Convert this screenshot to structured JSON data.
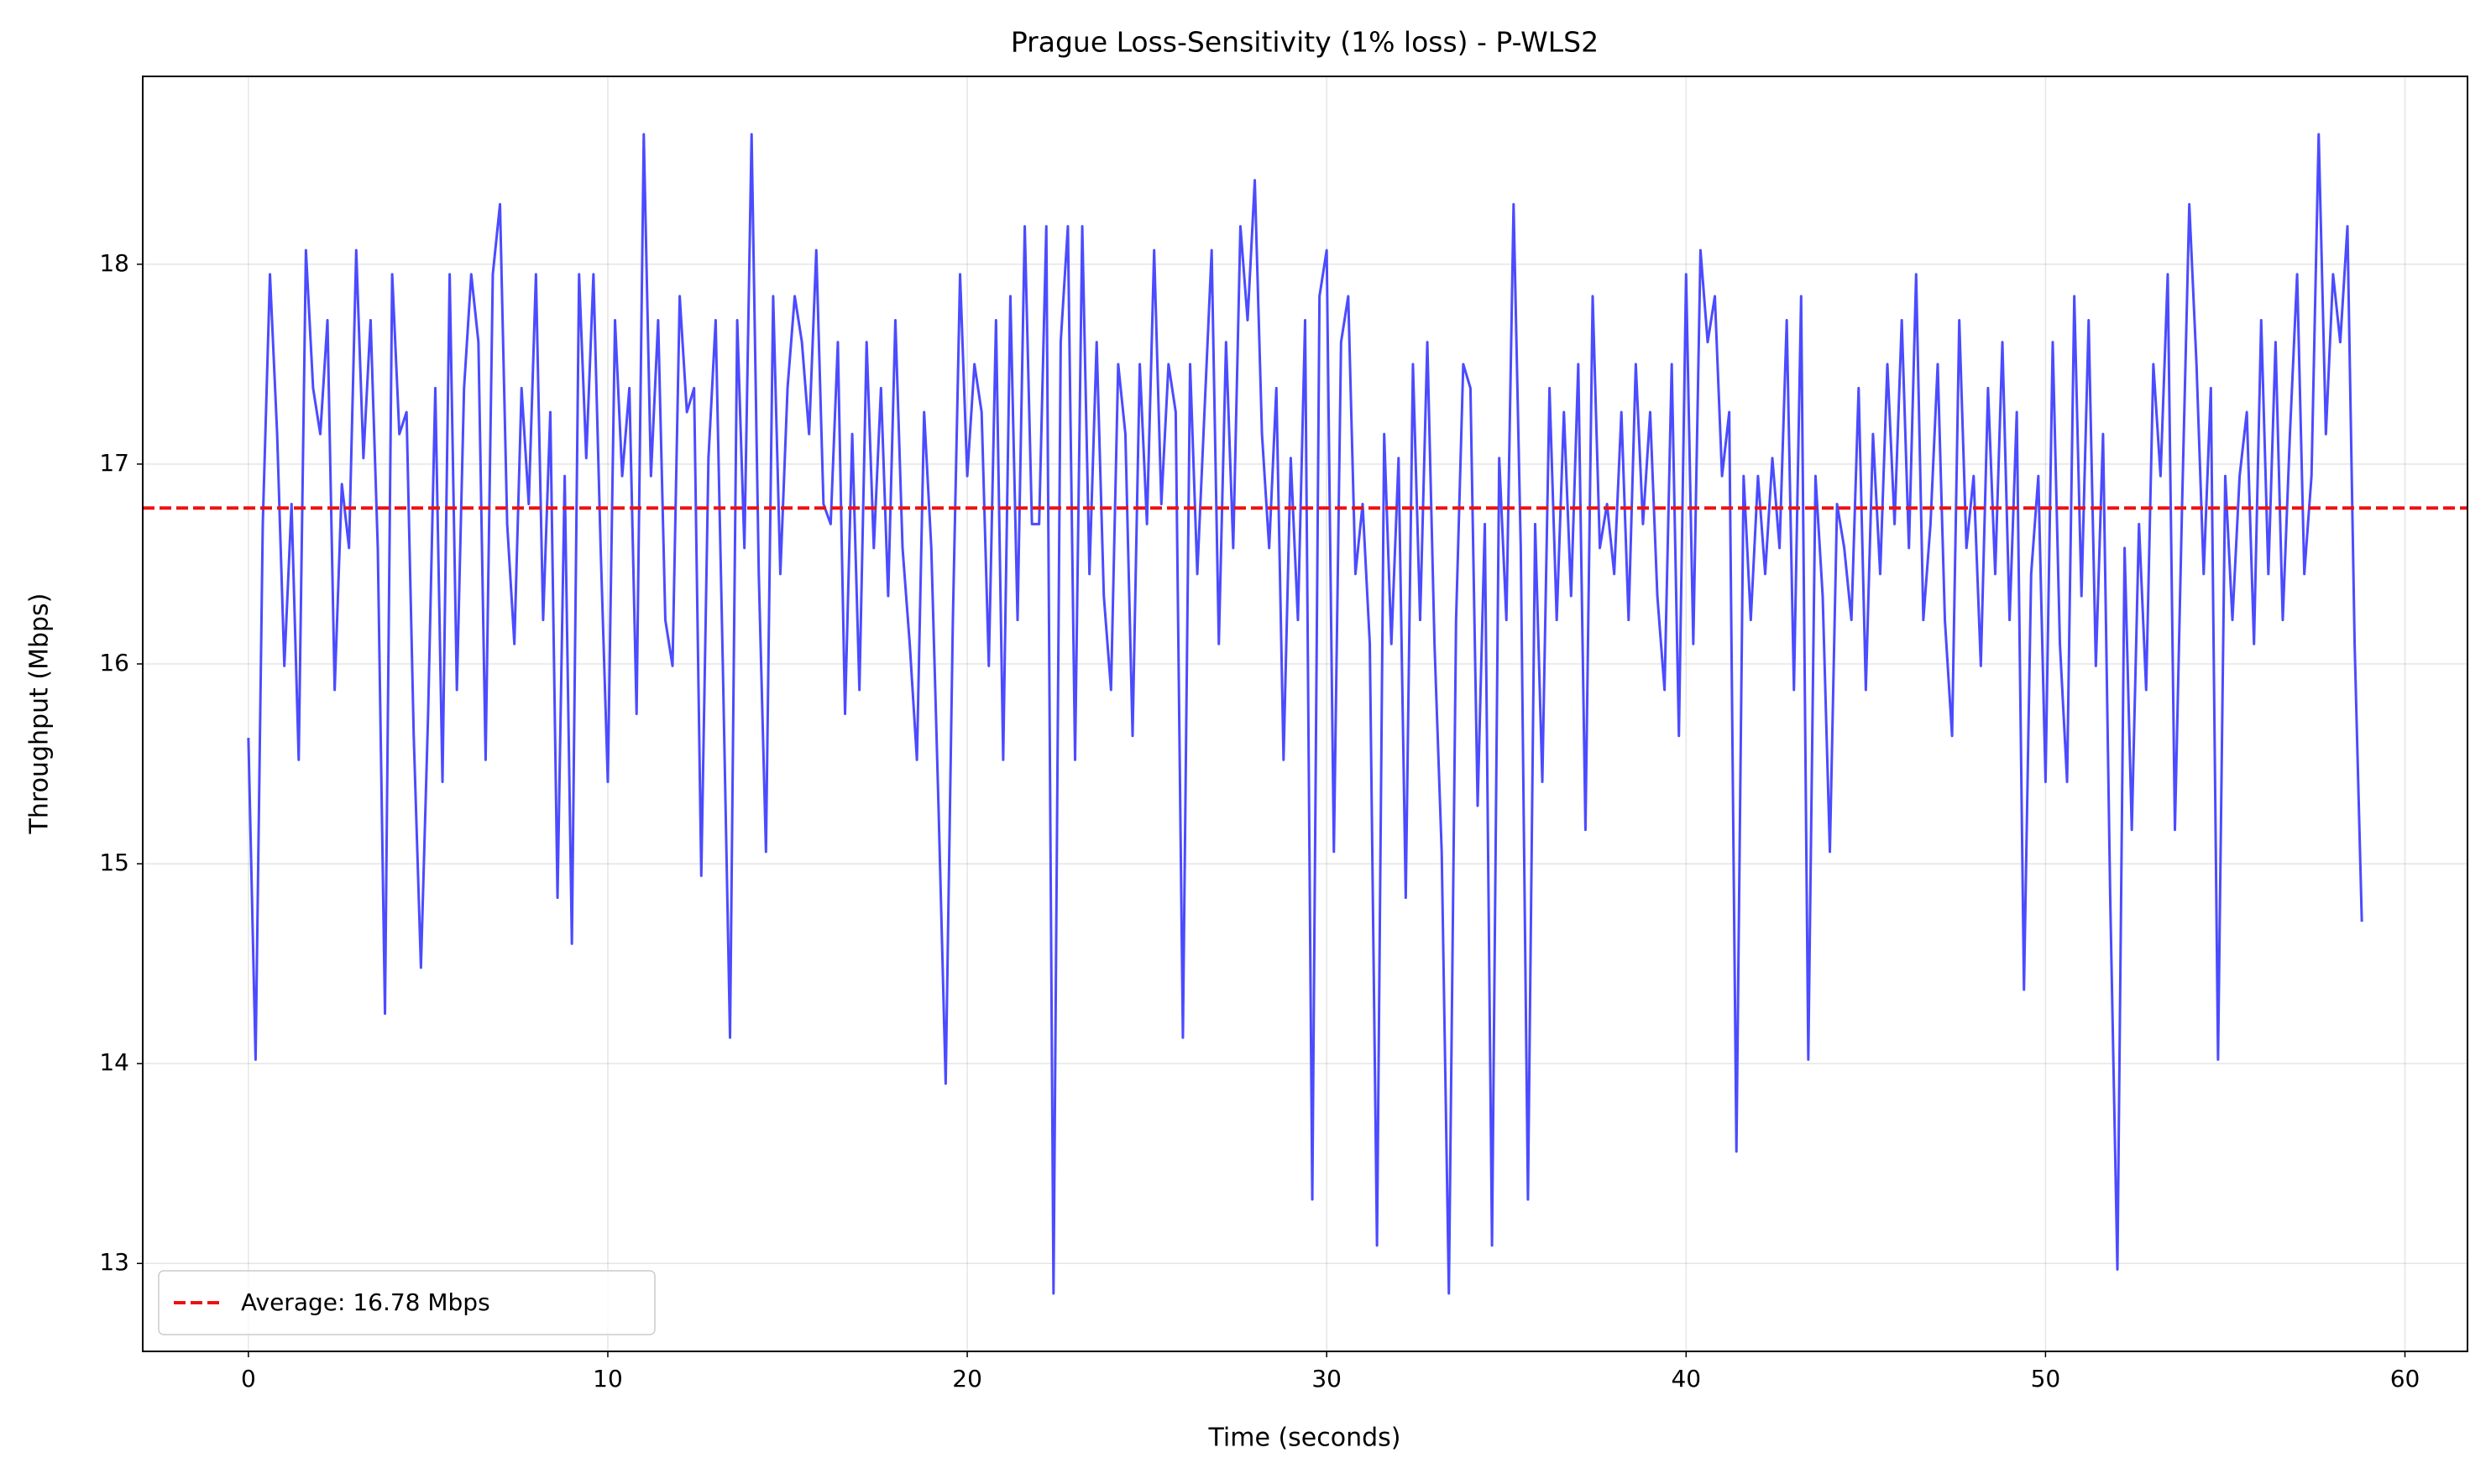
{
  "chart_data": {
    "type": "line",
    "title": "Prague Loss-Sensitivity (1% loss) - P-WLS2",
    "xlabel": "Time (seconds)",
    "ylabel": "Throughput (Mbps)",
    "xlim": [
      -2.94,
      61.74
    ],
    "ylim": [
      12.56,
      18.94
    ],
    "xticks": [
      0,
      10,
      20,
      30,
      40,
      50,
      60
    ],
    "yticks": [
      13,
      14,
      15,
      16,
      17,
      18
    ],
    "grid": true,
    "legend": "lower left",
    "x": [
      0,
      0.2,
      0.4,
      0.6,
      0.8,
      1,
      1.2,
      1.4,
      1.6,
      1.8,
      2,
      2.2,
      2.4,
      2.6,
      2.8,
      3,
      3.2,
      3.4,
      3.6,
      3.8,
      4,
      4.2,
      4.4,
      4.6,
      4.8,
      5,
      5.2,
      5.4,
      5.6,
      5.8,
      6,
      6.2,
      6.4,
      6.6,
      6.8,
      7,
      7.2,
      7.4,
      7.6,
      7.8,
      8,
      8.2,
      8.4,
      8.6,
      8.8,
      9,
      9.2,
      9.4,
      9.6,
      9.8,
      10,
      10.2,
      10.4,
      10.6,
      10.8,
      11,
      11.2,
      11.4,
      11.6,
      11.8,
      12,
      12.2,
      12.4,
      12.6,
      12.8,
      13,
      13.2,
      13.4,
      13.6,
      13.8,
      14,
      14.2,
      14.4,
      14.6,
      14.8,
      15,
      15.2,
      15.4,
      15.6,
      15.8,
      16,
      16.2,
      16.4,
      16.6,
      16.8,
      17,
      17.2,
      17.4,
      17.6,
      17.8,
      18,
      18.2,
      18.4,
      18.6,
      18.8,
      19,
      19.2,
      19.4,
      19.6,
      19.8,
      20,
      20.2,
      20.4,
      20.6,
      20.8,
      21,
      21.2,
      21.4,
      21.6,
      21.8,
      22,
      22.2,
      22.4,
      22.6,
      22.8,
      23,
      23.2,
      23.4,
      23.6,
      23.8,
      24,
      24.2,
      24.4,
      24.6,
      24.8,
      25,
      25.2,
      25.4,
      25.6,
      25.8,
      26,
      26.2,
      26.4,
      26.6,
      26.8,
      27,
      27.2,
      27.4,
      27.6,
      27.8,
      28,
      28.2,
      28.4,
      28.6,
      28.8,
      29,
      29.2,
      29.4,
      29.6,
      29.8,
      30,
      30.2,
      30.4,
      30.6,
      30.8,
      31,
      31.2,
      31.4,
      31.6,
      31.8,
      32,
      32.2,
      32.4,
      32.6,
      32.8,
      33,
      33.2,
      33.4,
      33.6,
      33.8,
      34,
      34.2,
      34.4,
      34.6,
      34.8,
      35,
      35.2,
      35.4,
      35.6,
      35.8,
      36,
      36.2,
      36.4,
      36.6,
      36.8,
      37,
      37.2,
      37.4,
      37.6,
      37.8,
      38,
      38.2,
      38.4,
      38.6,
      38.8,
      39,
      39.2,
      39.4,
      39.6,
      39.8,
      40,
      40.2,
      40.4,
      40.6,
      40.8,
      41,
      41.2,
      41.4,
      41.6,
      41.8,
      42,
      42.2,
      42.4,
      42.6,
      42.8,
      43,
      43.2,
      43.4,
      43.6,
      43.8,
      44,
      44.2,
      44.4,
      44.6,
      44.8,
      45,
      45.2,
      45.4,
      45.6,
      45.8,
      46,
      46.2,
      46.4,
      46.6,
      46.8,
      47,
      47.2,
      47.4,
      47.6,
      47.8,
      48,
      48.2,
      48.4,
      48.6,
      48.8,
      49,
      49.2,
      49.4,
      49.6,
      49.8,
      50,
      50.2,
      50.4,
      50.6,
      50.8,
      51,
      51.2,
      51.4,
      51.6,
      51.8,
      52,
      52.2,
      52.4,
      52.6,
      52.8,
      53,
      53.2,
      53.4,
      53.6,
      53.8,
      54,
      54.2,
      54.4,
      54.6,
      54.8,
      55,
      55.2,
      55.4,
      55.6,
      55.8,
      56,
      56.2,
      56.4,
      56.6,
      56.8,
      57,
      57.2,
      57.4,
      57.6,
      57.8,
      58,
      58.2,
      58.4,
      58.6,
      58.8
    ],
    "series": [
      {
        "color": "#4b4bff",
        "values": [
          15.63,
          14.02,
          16.7,
          17.95,
          17.15,
          15.99,
          16.8,
          15.52,
          18.07,
          17.38,
          17.15,
          17.72,
          15.87,
          16.9,
          16.58,
          18.07,
          17.03,
          17.72,
          16.58,
          14.25,
          17.95,
          17.15,
          17.26,
          15.64,
          14.48,
          15.75,
          17.38,
          15.41,
          17.95,
          15.87,
          17.38,
          17.95,
          17.61,
          15.52,
          17.95,
          18.3,
          16.7,
          16.1,
          17.38,
          16.8,
          17.95,
          16.22,
          17.26,
          14.83,
          16.94,
          14.6,
          17.95,
          17.03,
          17.95,
          16.58,
          15.41,
          17.72,
          16.94,
          17.38,
          15.75,
          18.65,
          16.94,
          17.72,
          16.22,
          15.99,
          17.84,
          17.26,
          17.38,
          14.94,
          17.03,
          17.72,
          15.99,
          14.13,
          17.72,
          16.58,
          18.65,
          16.45,
          15.06,
          17.84,
          16.45,
          17.38,
          17.84,
          17.61,
          17.15,
          18.07,
          16.8,
          16.7,
          17.61,
          15.75,
          17.15,
          15.87,
          17.61,
          16.58,
          17.38,
          16.34,
          17.72,
          16.58,
          16.1,
          15.52,
          17.26,
          16.58,
          15.29,
          13.9,
          16.22,
          17.95,
          16.94,
          17.5,
          17.26,
          15.99,
          17.72,
          15.52,
          17.84,
          16.22,
          18.19,
          16.7,
          16.7,
          18.19,
          12.85,
          17.61,
          18.19,
          15.52,
          18.19,
          16.45,
          17.61,
          16.34,
          15.87,
          17.5,
          17.15,
          15.64,
          17.5,
          16.7,
          18.07,
          16.8,
          17.5,
          17.26,
          14.13,
          17.5,
          16.45,
          17.26,
          18.07,
          16.1,
          17.61,
          16.58,
          18.19,
          17.72,
          18.42,
          17.15,
          16.58,
          17.38,
          15.52,
          17.03,
          16.22,
          17.72,
          13.32,
          17.84,
          18.07,
          15.06,
          17.61,
          17.84,
          16.45,
          16.8,
          16.1,
          13.09,
          17.15,
          16.1,
          17.03,
          14.83,
          17.5,
          16.22,
          17.61,
          16.1,
          15.06,
          12.85,
          16.22,
          17.5,
          17.38,
          15.29,
          16.7,
          13.09,
          17.03,
          16.22,
          18.3,
          16.58,
          13.32,
          16.7,
          15.41,
          17.38,
          16.22,
          17.26,
          16.34,
          17.5,
          15.17,
          17.84,
          16.58,
          16.8,
          16.45,
          17.26,
          16.22,
          17.5,
          16.7,
          17.26,
          16.34,
          15.87,
          17.5,
          15.64,
          17.95,
          16.1,
          18.07,
          17.61,
          17.84,
          16.94,
          17.26,
          13.56,
          16.94,
          16.22,
          16.94,
          16.45,
          17.03,
          16.58,
          17.72,
          15.87,
          17.84,
          14.02,
          16.94,
          16.34,
          15.06,
          16.8,
          16.58,
          16.22,
          17.38,
          15.87,
          17.15,
          16.45,
          17.5,
          16.7,
          17.72,
          16.58,
          17.95,
          16.22,
          16.7,
          17.5,
          16.22,
          15.64,
          17.72,
          16.58,
          16.94,
          15.99,
          17.38,
          16.45,
          17.61,
          16.22,
          17.26,
          14.37,
          16.45,
          16.94,
          15.41,
          17.61,
          16.1,
          15.41,
          17.84,
          16.34,
          17.72,
          15.99,
          17.15,
          14.83,
          12.97,
          16.58,
          15.17,
          16.7,
          15.87,
          17.5,
          16.94,
          17.95,
          15.17,
          16.8,
          18.3,
          17.5,
          16.45,
          17.38,
          14.02,
          16.94,
          16.22,
          16.94,
          17.26,
          16.1,
          17.72,
          16.45,
          17.61,
          16.22,
          17.15,
          17.95,
          16.45,
          16.94,
          18.65,
          17.15,
          17.95,
          17.61,
          18.19,
          16.1,
          14.71
        ]
      }
    ],
    "hline": {
      "value": 16.78,
      "color": "#ee1111",
      "label": "Average: 16.78 Mbps"
    }
  }
}
